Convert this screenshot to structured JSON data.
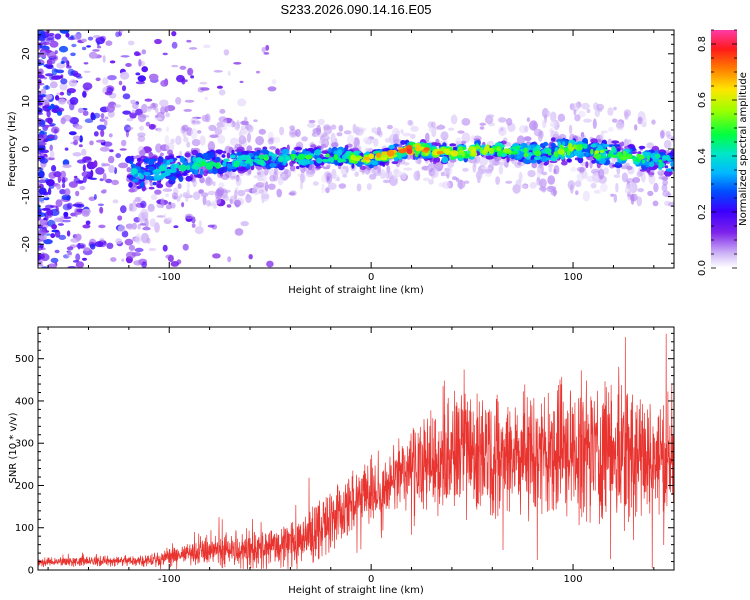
{
  "figure": {
    "title": "S233.2026.090.14.16.E05"
  },
  "chart_data": [
    {
      "type": "heatmap",
      "title": "",
      "xlabel": "Height of straight line (km)",
      "ylabel": "Frequency (Hz)",
      "xlim": [
        -165,
        150
      ],
      "ylim": [
        -25,
        25
      ],
      "xticks": [
        -100,
        0,
        100
      ],
      "yticks": [
        -20,
        -10,
        0,
        10,
        20
      ],
      "grid": false,
      "colorbar": {
        "label": "Normalized spectral amplitude",
        "range": [
          0.0,
          0.85
        ],
        "ticks": [
          0.0,
          0.2,
          0.4,
          0.6,
          0.8
        ],
        "colormap": "rainbow"
      },
      "ridge": {
        "description_points_x_km": [
          -110,
          -80,
          -50,
          -20,
          0,
          20,
          40,
          60,
          80,
          100,
          120,
          150
        ],
        "center_freq_hz": [
          -5,
          -3,
          -2,
          -1.5,
          -2,
          0,
          -1,
          0,
          -1,
          0,
          -1,
          -3
        ],
        "halfwidth_hz": [
          6,
          4,
          3.5,
          3,
          2.5,
          2.5,
          3,
          3,
          3.5,
          4,
          4,
          4
        ],
        "peak_amplitude": [
          0.4,
          0.45,
          0.45,
          0.5,
          0.65,
          0.8,
          0.6,
          0.55,
          0.5,
          0.55,
          0.5,
          0.45
        ]
      }
    },
    {
      "type": "line",
      "title": "",
      "xlabel": "Height of straight line (km)",
      "ylabel": "SNR (10 * v/v)",
      "xlim": [
        -165,
        150
      ],
      "ylim": [
        0,
        575
      ],
      "xticks": [
        -100,
        0,
        100
      ],
      "yticks": [
        0,
        100,
        200,
        300,
        400,
        500
      ],
      "grid": false,
      "color": "#e8332f",
      "series": [
        {
          "name": "SNR",
          "x": [
            -165,
            -150,
            -120,
            -100,
            -90,
            -80,
            -60,
            -50,
            -40,
            -30,
            -20,
            -10,
            0,
            5,
            10,
            20,
            30,
            40,
            50,
            60,
            80,
            100,
            120,
            140,
            150
          ],
          "mean": [
            18,
            20,
            22,
            28,
            40,
            45,
            50,
            55,
            65,
            80,
            120,
            150,
            190,
            170,
            210,
            250,
            260,
            270,
            285,
            280,
            275,
            280,
            290,
            260,
            280
          ],
          "spread": [
            8,
            8,
            10,
            15,
            20,
            25,
            35,
            35,
            45,
            50,
            55,
            60,
            60,
            50,
            55,
            70,
            90,
            100,
            110,
            110,
            110,
            120,
            130,
            110,
            100
          ]
        }
      ]
    }
  ]
}
